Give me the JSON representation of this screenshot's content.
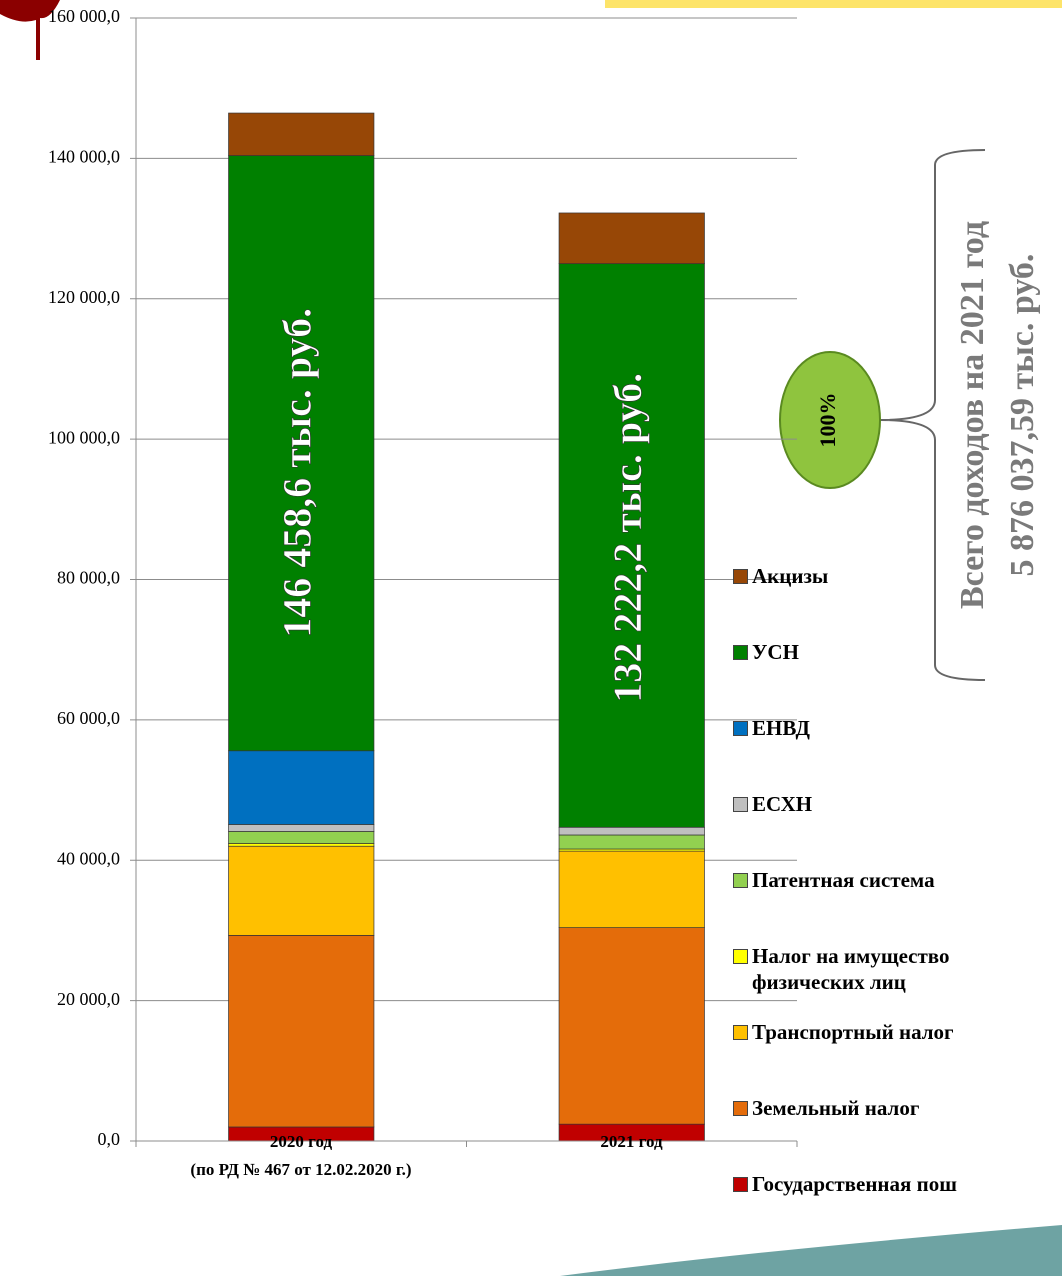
{
  "chart_data": {
    "type": "stacked_bar",
    "categories": [
      "2020 год\n(по РД № 467 от 12.02.2020 г.)",
      "2021 год"
    ],
    "series": [
      {
        "name": "Государственная пош",
        "color": "#c00000",
        "values": [
          2000,
          2400
        ]
      },
      {
        "name": "Земельный налог",
        "color": "#e46c0a",
        "values": [
          27300,
          28000
        ]
      },
      {
        "name": "Транспортный налог",
        "color": "#ffc000",
        "values": [
          12700,
          10900
        ]
      },
      {
        "name": "Налог на имущество физических лиц",
        "color": "#ffff00",
        "values": [
          400,
          300
        ]
      },
      {
        "name": "Патентная система",
        "color": "#92d050",
        "values": [
          1700,
          2000
        ]
      },
      {
        "name": "ЕСХН",
        "color": "#bfbfbf",
        "values": [
          1000,
          1100
        ]
      },
      {
        "name": "ЕНВД",
        "color": "#0070c0",
        "values": [
          10500,
          0
        ]
      },
      {
        "name": "УСН",
        "color": "#008000",
        "values": [
          84800,
          80300
        ]
      },
      {
        "name": "Акцизы",
        "color": "#974706",
        "values": [
          6058.6,
          7222.2
        ]
      }
    ],
    "totals": [
      146458.6,
      132222.2
    ],
    "total_labels": [
      "146 458,6 тыс. руб.",
      "132 222,2  тыс. руб."
    ],
    "ylim": [
      0,
      160000
    ],
    "yticks": [
      {
        "value": 0,
        "label": "0,0"
      },
      {
        "value": 20000,
        "label": "20 000,0"
      },
      {
        "value": 40000,
        "label": "40 000,0"
      },
      {
        "value": 60000,
        "label": "60 000,0"
      },
      {
        "value": 80000,
        "label": "80 000,0"
      },
      {
        "value": 100000,
        "label": "100 000,0"
      },
      {
        "value": 120000,
        "label": "120 000,0"
      },
      {
        "value": 140000,
        "label": "140 000,0"
      },
      {
        "value": 160000,
        "label": "160 000,0"
      }
    ],
    "grid": true,
    "annotations": [
      "Всего доходов на 2021 год",
      "5 876 037,59 тыс. руб.",
      "100%"
    ]
  }
}
